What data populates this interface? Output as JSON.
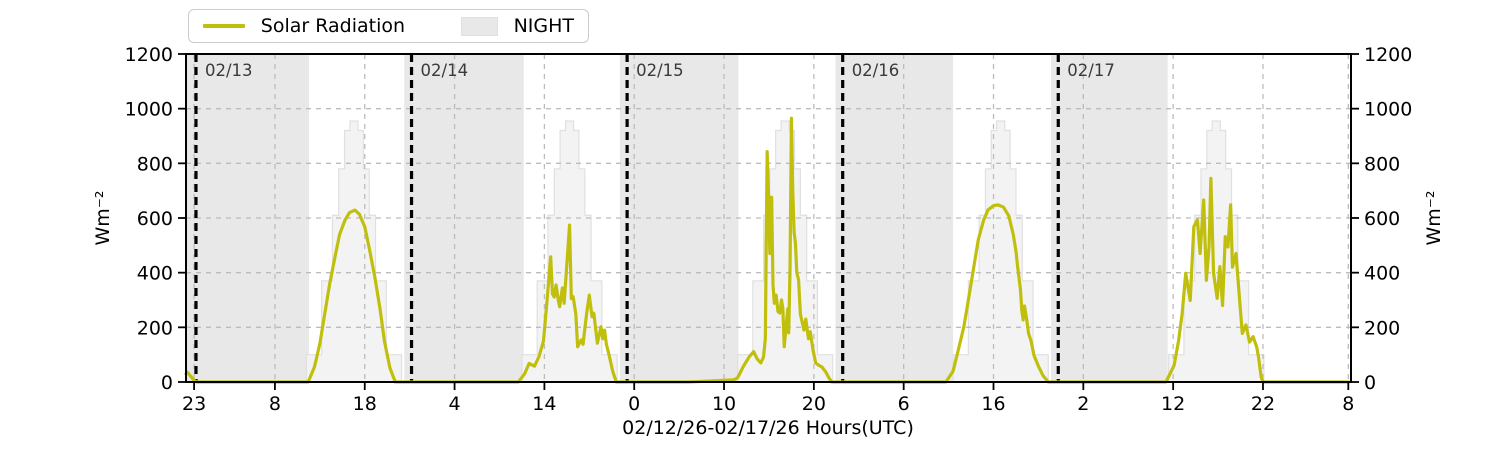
{
  "legend": {
    "solar_label": "Solar Radiation",
    "night_label": "NIGHT"
  },
  "axes": {
    "xlabel": "02/12/26-02/17/26  Hours(UTC)",
    "ylabel_left": "Wm⁻²",
    "ylabel_right": "Wm⁻²"
  },
  "chart_data": {
    "type": "line",
    "title": "",
    "xlabel": "02/12/26-02/17/26  Hours(UTC)",
    "ylabel": "Wm⁻²",
    "x_unit": "hours since start of plot (02/12/26 ~23:00 UTC)",
    "x_range_hours": 129.7,
    "ylim": [
      0,
      1200
    ],
    "yticks": [
      0,
      200,
      400,
      600,
      800,
      1000,
      1200
    ],
    "xticks": [
      {
        "t": 0.9,
        "label": "23"
      },
      {
        "t": 9.9,
        "label": "8"
      },
      {
        "t": 19.9,
        "label": "18"
      },
      {
        "t": 29.9,
        "label": "4"
      },
      {
        "t": 39.9,
        "label": "14"
      },
      {
        "t": 49.9,
        "label": "0"
      },
      {
        "t": 59.9,
        "label": "10"
      },
      {
        "t": 69.9,
        "label": "20"
      },
      {
        "t": 79.9,
        "label": "6"
      },
      {
        "t": 89.9,
        "label": "16"
      },
      {
        "t": 99.9,
        "label": "2"
      },
      {
        "t": 109.9,
        "label": "12"
      },
      {
        "t": 119.9,
        "label": "22"
      },
      {
        "t": 129.4,
        "label": "8"
      }
    ],
    "date_lines": [
      {
        "t": 1.11,
        "label": "02/13"
      },
      {
        "t": 25.11,
        "label": "02/14"
      },
      {
        "t": 49.11,
        "label": "02/15"
      },
      {
        "t": 73.11,
        "label": "02/16"
      },
      {
        "t": 97.11,
        "label": "02/17"
      }
    ],
    "night_spans": [
      [
        0,
        13.7
      ],
      [
        24.3,
        37.6
      ],
      [
        48.3,
        61.5
      ],
      [
        72.3,
        85.4
      ],
      [
        96.3,
        109.3
      ]
    ],
    "clear_sky_steps": {
      "centers": [
        18.7,
        42.7,
        66.7,
        90.7,
        114.7
      ],
      "levels": [
        [
          5.3,
          100
        ],
        [
          3.6,
          370
        ],
        [
          2.4,
          610
        ],
        [
          1.7,
          780
        ],
        [
          1.05,
          920
        ],
        [
          0.45,
          955
        ]
      ]
    },
    "solar_radiation": [
      [
        0,
        30
      ],
      [
        0.15,
        36
      ],
      [
        0.5,
        22
      ],
      [
        0.9,
        6
      ],
      [
        1.2,
        0
      ],
      [
        6,
        0
      ],
      [
        12,
        0
      ],
      [
        13.6,
        0
      ],
      [
        14.3,
        55
      ],
      [
        14.9,
        140
      ],
      [
        15.4,
        240
      ],
      [
        16.0,
        360
      ],
      [
        16.6,
        460
      ],
      [
        17.1,
        540
      ],
      [
        17.7,
        592
      ],
      [
        18.2,
        620
      ],
      [
        18.8,
        629
      ],
      [
        19.3,
        614
      ],
      [
        19.9,
        568
      ],
      [
        20.4,
        490
      ],
      [
        21.0,
        388
      ],
      [
        21.6,
        268
      ],
      [
        22.1,
        148
      ],
      [
        22.7,
        52
      ],
      [
        23.3,
        0
      ],
      [
        26,
        0
      ],
      [
        32,
        0
      ],
      [
        37.0,
        0
      ],
      [
        37.7,
        30
      ],
      [
        38.2,
        68
      ],
      [
        38.8,
        58
      ],
      [
        39.3,
        93
      ],
      [
        39.8,
        150
      ],
      [
        40.2,
        300
      ],
      [
        40.6,
        458
      ],
      [
        40.8,
        322
      ],
      [
        41.0,
        311
      ],
      [
        41.2,
        355
      ],
      [
        41.45,
        298
      ],
      [
        41.6,
        275
      ],
      [
        41.9,
        344
      ],
      [
        42.1,
        288
      ],
      [
        42.4,
        430
      ],
      [
        42.7,
        574
      ],
      [
        42.9,
        305
      ],
      [
        43.1,
        312
      ],
      [
        43.4,
        248
      ],
      [
        43.6,
        129
      ],
      [
        44.0,
        154
      ],
      [
        44.2,
        138
      ],
      [
        44.6,
        250
      ],
      [
        44.9,
        318
      ],
      [
        45.2,
        239
      ],
      [
        45.4,
        252
      ],
      [
        45.8,
        142
      ],
      [
        46.2,
        202
      ],
      [
        46.4,
        158
      ],
      [
        46.6,
        190
      ],
      [
        46.8,
        138
      ],
      [
        47.1,
        99
      ],
      [
        47.5,
        40
      ],
      [
        47.9,
        0
      ],
      [
        50,
        0
      ],
      [
        56,
        0
      ],
      [
        61.0,
        8
      ],
      [
        61.4,
        15
      ],
      [
        62.1,
        60
      ],
      [
        62.7,
        92
      ],
      [
        63.2,
        111
      ],
      [
        63.6,
        84
      ],
      [
        64.0,
        70
      ],
      [
        64.3,
        92
      ],
      [
        64.5,
        160
      ],
      [
        64.6,
        520
      ],
      [
        64.7,
        843
      ],
      [
        64.85,
        690
      ],
      [
        65.0,
        470
      ],
      [
        65.2,
        676
      ],
      [
        65.35,
        355
      ],
      [
        65.5,
        288
      ],
      [
        65.7,
        318
      ],
      [
        65.9,
        258
      ],
      [
        66.1,
        252
      ],
      [
        66.3,
        300
      ],
      [
        66.45,
        268
      ],
      [
        66.6,
        129
      ],
      [
        66.8,
        200
      ],
      [
        67.0,
        268
      ],
      [
        67.1,
        180
      ],
      [
        67.25,
        420
      ],
      [
        67.4,
        965
      ],
      [
        67.55,
        700
      ],
      [
        67.7,
        548
      ],
      [
        67.85,
        508
      ],
      [
        68.0,
        400
      ],
      [
        68.2,
        373
      ],
      [
        68.4,
        248
      ],
      [
        68.8,
        190
      ],
      [
        69.0,
        230
      ],
      [
        69.3,
        158
      ],
      [
        69.5,
        184
      ],
      [
        69.8,
        118
      ],
      [
        70.1,
        70
      ],
      [
        70.5,
        60
      ],
      [
        70.8,
        55
      ],
      [
        71.2,
        38
      ],
      [
        71.6,
        14
      ],
      [
        71.9,
        0
      ],
      [
        74,
        0
      ],
      [
        80,
        0
      ],
      [
        84.6,
        0
      ],
      [
        85.4,
        40
      ],
      [
        86.0,
        120
      ],
      [
        86.6,
        202
      ],
      [
        87.1,
        300
      ],
      [
        87.7,
        420
      ],
      [
        88.2,
        520
      ],
      [
        88.8,
        592
      ],
      [
        89.3,
        630
      ],
      [
        89.9,
        645
      ],
      [
        90.4,
        648
      ],
      [
        91.0,
        640
      ],
      [
        91.6,
        608
      ],
      [
        92.1,
        540
      ],
      [
        92.4,
        478
      ],
      [
        92.6,
        418
      ],
      [
        92.9,
        338
      ],
      [
        93.05,
        262
      ],
      [
        93.2,
        227
      ],
      [
        93.35,
        278
      ],
      [
        93.6,
        228
      ],
      [
        93.8,
        178
      ],
      [
        94.1,
        148
      ],
      [
        94.4,
        98
      ],
      [
        94.9,
        58
      ],
      [
        95.4,
        24
      ],
      [
        96.0,
        0
      ],
      [
        99,
        0
      ],
      [
        104,
        0
      ],
      [
        109.1,
        0
      ],
      [
        110.0,
        60
      ],
      [
        110.5,
        150
      ],
      [
        110.9,
        250
      ],
      [
        111.3,
        398
      ],
      [
        111.8,
        298
      ],
      [
        112.2,
        568
      ],
      [
        112.6,
        593
      ],
      [
        112.9,
        470
      ],
      [
        113.3,
        666
      ],
      [
        113.6,
        372
      ],
      [
        113.9,
        498
      ],
      [
        114.1,
        745
      ],
      [
        114.4,
        398
      ],
      [
        114.8,
        306
      ],
      [
        115.1,
        422
      ],
      [
        115.4,
        280
      ],
      [
        115.7,
        532
      ],
      [
        116.0,
        494
      ],
      [
        116.3,
        648
      ],
      [
        116.5,
        420
      ],
      [
        116.9,
        470
      ],
      [
        117.3,
        300
      ],
      [
        117.6,
        178
      ],
      [
        118.0,
        209
      ],
      [
        118.4,
        146
      ],
      [
        118.8,
        166
      ],
      [
        119.2,
        128
      ],
      [
        119.4,
        92
      ],
      [
        119.7,
        18
      ],
      [
        119.9,
        0
      ],
      [
        124,
        0
      ],
      [
        129.4,
        0
      ]
    ],
    "legend_entries": [
      "Solar Radiation",
      "NIGHT"
    ],
    "legend_position": "upper left, outside axes",
    "grid": true,
    "colors": {
      "line": "#c1bf0e",
      "night": "#e8e8e8",
      "clear_sky_fill": "#f3f3f3",
      "clear_sky_edge": "#e0e0e0",
      "grid": "#bcbcbc",
      "date_line": "#000000",
      "date_label": "#3a3a3a"
    }
  }
}
